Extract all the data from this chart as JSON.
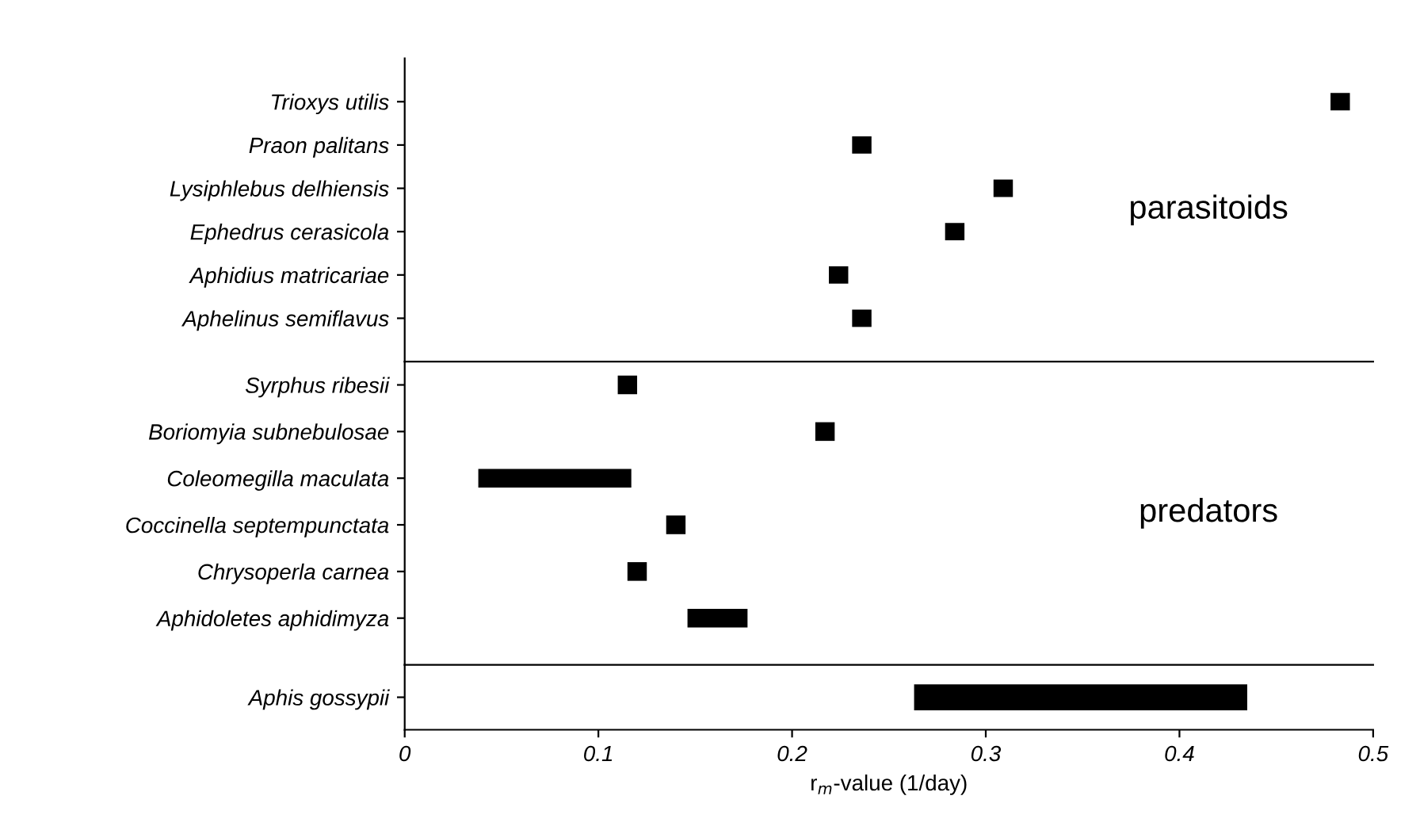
{
  "chart_data": [
    {
      "type": "bar",
      "orientation": "horizontal",
      "categories": [
        "Trioxys utilis",
        "Praon palitans",
        "Lysiphlebus delhiensis",
        "Ephedrus cerasicola",
        "Aphidius matricariae",
        "Aphelinus semiflavus"
      ],
      "base": [
        0.478,
        0.231,
        0.304,
        0.279,
        0.219,
        0.231
      ],
      "values": [
        0.01,
        0.01,
        0.01,
        0.01,
        0.01,
        0.01
      ],
      "color": "#000000",
      "xlim": [
        0,
        0.5
      ],
      "tick_labels": "y",
      "annotations": [
        "parasitoids"
      ]
    },
    {
      "type": "bar",
      "orientation": "horizontal",
      "categories": [
        "Syrphus ribesii",
        "Boriomyia subnebulosae",
        "Coleomegilla maculata",
        "Coccinella septempunctata",
        "Chrysoperla carnea",
        "Aphidoletes aphidimyza"
      ],
      "base": [
        0.11,
        0.212,
        0.038,
        0.135,
        0.115,
        0.146
      ],
      "values": [
        0.01,
        0.01,
        0.079,
        0.01,
        0.01,
        0.031
      ],
      "color": "#000000",
      "xlim": [
        0,
        0.5
      ],
      "tick_labels": "y",
      "annotations": [
        "predators"
      ]
    },
    {
      "type": "bar",
      "orientation": "horizontal",
      "categories": [
        "Aphis gossypii"
      ],
      "base": [
        0.263
      ],
      "values": [
        0.172
      ],
      "color": "#000000",
      "xlim": [
        0,
        0.5
      ],
      "xticks": [
        {
          "value": 0,
          "label": "0"
        },
        0.1,
        0.2,
        0.3,
        0.4,
        0.5
      ],
      "xlabel": "r$_{m}$-value (1/day)"
    }
  ]
}
